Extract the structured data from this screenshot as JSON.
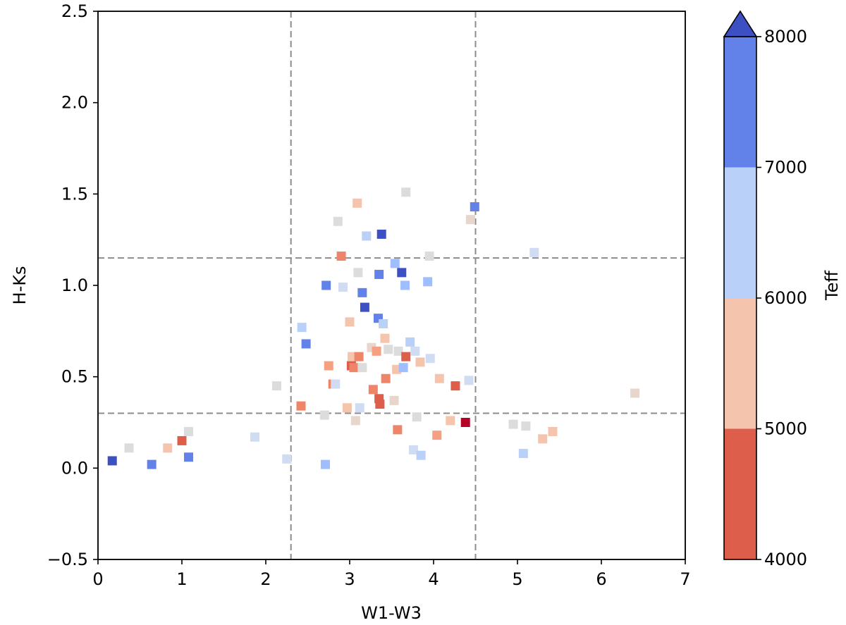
{
  "chart_data": {
    "type": "scatter",
    "xlabel": "W1-W3",
    "ylabel": "H-Ks",
    "xlim": [
      0,
      7
    ],
    "ylim": [
      -0.5,
      2.5
    ],
    "xticks": [
      0,
      1,
      2,
      3,
      4,
      5,
      6,
      7
    ],
    "xtick_labels": [
      "0",
      "1",
      "2",
      "3",
      "4",
      "5",
      "6",
      "7"
    ],
    "yticks": [
      -0.5,
      0.0,
      0.5,
      1.0,
      1.5,
      2.0,
      2.5
    ],
    "ytick_labels": [
      "−0.5",
      "0.0",
      "0.5",
      "1.0",
      "1.5",
      "2.0",
      "2.5"
    ],
    "reference_lines": {
      "vertical_x": [
        2.3,
        4.5
      ],
      "horizontal_y": [
        0.3,
        1.15
      ],
      "style": "dashed",
      "color": "#8c8c8c"
    },
    "marker": "square",
    "colorbar": {
      "label": "Teff",
      "ticks": [
        4000,
        5000,
        6000,
        7000,
        8000
      ],
      "tick_labels": [
        "4000",
        "5000",
        "6000",
        "7000",
        "8000"
      ],
      "extend": "max",
      "bands": [
        {
          "from": 4000,
          "to": 5000,
          "color": "#dc5e4b"
        },
        {
          "from": 5000,
          "to": 6000,
          "color": "#f4c4ac"
        },
        {
          "from": 6000,
          "to": 7000,
          "color": "#b9d0f9"
        },
        {
          "from": 7000,
          "to": 8000,
          "color": "#6282ea"
        },
        {
          "from": 8000,
          "to": 8600,
          "color": "#3d50c3"
        }
      ]
    },
    "points": [
      {
        "x": 0.17,
        "y": 0.04,
        "color": "#3d50c3"
      },
      {
        "x": 0.37,
        "y": 0.11,
        "color": "#dcdcdc"
      },
      {
        "x": 0.64,
        "y": 0.02,
        "color": "#6282ea"
      },
      {
        "x": 0.83,
        "y": 0.11,
        "color": "#f4c4ac"
      },
      {
        "x": 1.0,
        "y": 0.15,
        "color": "#dc5e4b"
      },
      {
        "x": 1.08,
        "y": 0.2,
        "color": "#dcdcdc"
      },
      {
        "x": 1.08,
        "y": 0.06,
        "color": "#6282ea"
      },
      {
        "x": 1.87,
        "y": 0.17,
        "color": "#d0dcf2"
      },
      {
        "x": 2.13,
        "y": 0.45,
        "color": "#dcdcdc"
      },
      {
        "x": 2.25,
        "y": 0.05,
        "color": "#d0dcf2"
      },
      {
        "x": 2.42,
        "y": 0.34,
        "color": "#ee8468"
      },
      {
        "x": 2.43,
        "y": 0.77,
        "color": "#b9d0f9"
      },
      {
        "x": 2.48,
        "y": 0.68,
        "color": "#6282ea"
      },
      {
        "x": 2.7,
        "y": 0.29,
        "color": "#dcdcdc"
      },
      {
        "x": 2.71,
        "y": 0.02,
        "color": "#9ebeff"
      },
      {
        "x": 2.72,
        "y": 1.0,
        "color": "#6282ea"
      },
      {
        "x": 2.75,
        "y": 0.56,
        "color": "#f4a081"
      },
      {
        "x": 2.8,
        "y": 0.46,
        "color": "#ee8468"
      },
      {
        "x": 2.83,
        "y": 0.46,
        "color": "#d0dcf2"
      },
      {
        "x": 2.86,
        "y": 1.35,
        "color": "#dcdcdc"
      },
      {
        "x": 2.9,
        "y": 1.16,
        "color": "#ee8468"
      },
      {
        "x": 2.92,
        "y": 0.99,
        "color": "#d0dcf2"
      },
      {
        "x": 2.97,
        "y": 0.33,
        "color": "#f4c4ac"
      },
      {
        "x": 3.0,
        "y": 0.8,
        "color": "#f4c4ac"
      },
      {
        "x": 3.02,
        "y": 0.56,
        "color": "#dc5e4b"
      },
      {
        "x": 3.03,
        "y": 0.61,
        "color": "#f4c4ac"
      },
      {
        "x": 3.05,
        "y": 0.55,
        "color": "#ee8468"
      },
      {
        "x": 3.07,
        "y": 0.26,
        "color": "#e8d6cc"
      },
      {
        "x": 3.09,
        "y": 1.45,
        "color": "#f4c4ac"
      },
      {
        "x": 3.1,
        "y": 1.07,
        "color": "#dcdcdc"
      },
      {
        "x": 3.11,
        "y": 0.61,
        "color": "#ee8468"
      },
      {
        "x": 3.12,
        "y": 0.33,
        "color": "#d0dcf2"
      },
      {
        "x": 3.15,
        "y": 0.96,
        "color": "#6282ea"
      },
      {
        "x": 3.15,
        "y": 0.55,
        "color": "#dcdcdc"
      },
      {
        "x": 3.18,
        "y": 0.88,
        "color": "#3d50c3"
      },
      {
        "x": 3.2,
        "y": 1.27,
        "color": "#b9d0f9"
      },
      {
        "x": 3.26,
        "y": 0.66,
        "color": "#e8d6cc"
      },
      {
        "x": 3.28,
        "y": 0.43,
        "color": "#ee8468"
      },
      {
        "x": 3.32,
        "y": 0.64,
        "color": "#f4a081"
      },
      {
        "x": 3.34,
        "y": 0.82,
        "color": "#6282ea"
      },
      {
        "x": 3.35,
        "y": 1.06,
        "color": "#6282ea"
      },
      {
        "x": 3.35,
        "y": 0.38,
        "color": "#dc5e4b"
      },
      {
        "x": 3.36,
        "y": 0.35,
        "color": "#dc5e4b"
      },
      {
        "x": 3.38,
        "y": 1.28,
        "color": "#3d50c3"
      },
      {
        "x": 3.4,
        "y": 0.79,
        "color": "#b9d0f9"
      },
      {
        "x": 3.42,
        "y": 0.71,
        "color": "#f4c4ac"
      },
      {
        "x": 3.43,
        "y": 0.49,
        "color": "#ee8468"
      },
      {
        "x": 3.46,
        "y": 0.65,
        "color": "#dcdcdc"
      },
      {
        "x": 3.53,
        "y": 0.37,
        "color": "#e8d6cc"
      },
      {
        "x": 3.54,
        "y": 1.12,
        "color": "#9ebeff"
      },
      {
        "x": 3.56,
        "y": 0.54,
        "color": "#f4c4ac"
      },
      {
        "x": 3.57,
        "y": 0.21,
        "color": "#ee8468"
      },
      {
        "x": 3.58,
        "y": 0.64,
        "color": "#dcdcdc"
      },
      {
        "x": 3.62,
        "y": 1.07,
        "color": "#3d50c3"
      },
      {
        "x": 3.64,
        "y": 0.55,
        "color": "#9ebeff"
      },
      {
        "x": 3.66,
        "y": 1.0,
        "color": "#9ebeff"
      },
      {
        "x": 3.67,
        "y": 1.51,
        "color": "#dcdcdc"
      },
      {
        "x": 3.67,
        "y": 0.61,
        "color": "#dc5e4b"
      },
      {
        "x": 3.72,
        "y": 0.69,
        "color": "#b9d0f9"
      },
      {
        "x": 3.76,
        "y": 0.1,
        "color": "#d0dcf2"
      },
      {
        "x": 3.78,
        "y": 0.64,
        "color": "#d0dcf2"
      },
      {
        "x": 3.8,
        "y": 0.28,
        "color": "#dcdcdc"
      },
      {
        "x": 3.84,
        "y": 0.58,
        "color": "#f4c4ac"
      },
      {
        "x": 3.85,
        "y": 0.07,
        "color": "#b9d0f9"
      },
      {
        "x": 3.93,
        "y": 1.02,
        "color": "#9ebeff"
      },
      {
        "x": 3.95,
        "y": 1.16,
        "color": "#dcdcdc"
      },
      {
        "x": 3.96,
        "y": 0.6,
        "color": "#d0dcf2"
      },
      {
        "x": 4.04,
        "y": 0.18,
        "color": "#f4a081"
      },
      {
        "x": 4.07,
        "y": 0.49,
        "color": "#f4c4ac"
      },
      {
        "x": 4.2,
        "y": 0.26,
        "color": "#f4c4ac"
      },
      {
        "x": 4.26,
        "y": 0.45,
        "color": "#dc5e4b"
      },
      {
        "x": 4.38,
        "y": 0.25,
        "color": "#b40426"
      },
      {
        "x": 4.42,
        "y": 0.48,
        "color": "#d0dcf2"
      },
      {
        "x": 4.44,
        "y": 1.36,
        "color": "#e8d6cc"
      },
      {
        "x": 4.49,
        "y": 1.43,
        "color": "#6282ea"
      },
      {
        "x": 4.95,
        "y": 0.24,
        "color": "#dcdcdc"
      },
      {
        "x": 5.07,
        "y": 0.08,
        "color": "#b9d0f9"
      },
      {
        "x": 5.1,
        "y": 0.23,
        "color": "#dcdcdc"
      },
      {
        "x": 5.2,
        "y": 1.18,
        "color": "#d0dcf2"
      },
      {
        "x": 5.3,
        "y": 0.16,
        "color": "#f4c4ac"
      },
      {
        "x": 5.42,
        "y": 0.2,
        "color": "#f4c4ac"
      },
      {
        "x": 6.4,
        "y": 0.41,
        "color": "#e8d6cc"
      }
    ]
  }
}
